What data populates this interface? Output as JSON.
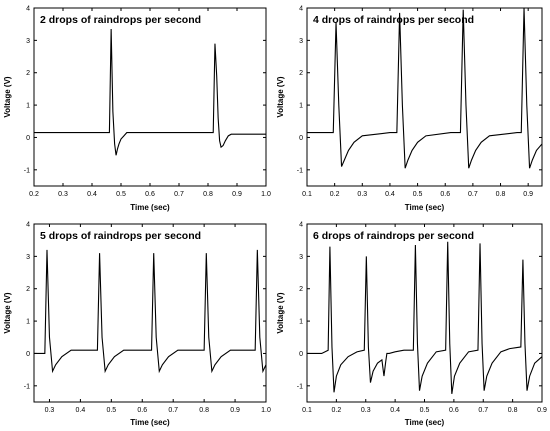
{
  "figure_theme": {
    "line_color": "#000000",
    "background": "#ffffff"
  },
  "chart_data": [
    {
      "type": "line",
      "title": "2 drops of raindrops per second",
      "xlabel": "Time (sec)",
      "ylabel": "Voltage (V)",
      "xlim": [
        0.2,
        1.0
      ],
      "ylim": [
        -1.5,
        4
      ],
      "xticks": [
        "0.2",
        "0.3",
        "0.4",
        "0.5",
        "0.6",
        "0.7",
        "0.8",
        "0.9",
        "1.0"
      ],
      "yticks": [
        "-1",
        "0",
        "1",
        "2",
        "3",
        "4"
      ],
      "grid": false,
      "series": [
        {
          "x": [
            0.2,
            0.3,
            0.4,
            0.455,
            0.46,
            0.466,
            0.472,
            0.478,
            0.483,
            0.488,
            0.493,
            0.5,
            0.51,
            0.52,
            0.6,
            0.7,
            0.8,
            0.818,
            0.824,
            0.83,
            0.835,
            0.84,
            0.845,
            0.852,
            0.86,
            0.87,
            0.88,
            0.9,
            0.95,
            1.0
          ],
          "y": [
            0.15,
            0.15,
            0.15,
            0.15,
            0.15,
            3.35,
            0.8,
            -0.2,
            -0.55,
            -0.35,
            -0.2,
            -0.05,
            0.05,
            0.15,
            0.15,
            0.15,
            0.15,
            0.15,
            2.9,
            1.9,
            0.6,
            -0.1,
            -0.3,
            -0.25,
            -0.1,
            0.05,
            0.1,
            0.1,
            0.1,
            0.1
          ]
        }
      ]
    },
    {
      "type": "line",
      "title": "4 drops of raindrops per second",
      "xlabel": "Time (sec)",
      "ylabel": "Voltage (V)",
      "xlim": [
        0.1,
        0.95
      ],
      "ylim": [
        -1.5,
        4
      ],
      "xticks": [
        "0.1",
        "0.2",
        "0.3",
        "0.4",
        "0.5",
        "0.6",
        "0.7",
        "0.8",
        "0.9"
      ],
      "yticks": [
        "-1",
        "0",
        "1",
        "2",
        "3",
        "4"
      ],
      "grid": false,
      "series": [
        {
          "x": [
            0.1,
            0.195,
            0.205,
            0.215,
            0.225,
            0.235,
            0.25,
            0.27,
            0.3,
            0.4,
            0.425,
            0.435,
            0.445,
            0.455,
            0.465,
            0.48,
            0.5,
            0.53,
            0.62,
            0.655,
            0.665,
            0.675,
            0.685,
            0.695,
            0.71,
            0.73,
            0.76,
            0.86,
            0.875,
            0.885,
            0.895,
            0.905,
            0.915,
            0.93,
            0.95
          ],
          "y": [
            0.15,
            0.15,
            3.55,
            1.0,
            -0.9,
            -0.7,
            -0.4,
            -0.15,
            0.05,
            0.15,
            0.15,
            3.85,
            1.0,
            -0.95,
            -0.7,
            -0.4,
            -0.15,
            0.05,
            0.15,
            0.15,
            3.95,
            1.0,
            -0.95,
            -0.7,
            -0.4,
            -0.15,
            0.05,
            0.15,
            0.15,
            4.0,
            1.0,
            -0.95,
            -0.7,
            -0.4,
            -0.2
          ]
        }
      ]
    },
    {
      "type": "line",
      "title": "5 drops of raindrops per second",
      "xlabel": "Time (sec)",
      "ylabel": "Voltage (V)",
      "xlim": [
        0.25,
        1.0
      ],
      "ylim": [
        -1.5,
        4
      ],
      "xticks": [
        "0.3",
        "0.4",
        "0.5",
        "0.6",
        "0.7",
        "0.8",
        "0.9",
        "1.0"
      ],
      "yticks": [
        "-1",
        "0",
        "1",
        "2",
        "3",
        "4"
      ],
      "grid": false,
      "series": [
        {
          "x": [
            0.25,
            0.27,
            0.285,
            0.292,
            0.3,
            0.31,
            0.32,
            0.34,
            0.37,
            0.44,
            0.455,
            0.462,
            0.47,
            0.48,
            0.49,
            0.51,
            0.54,
            0.615,
            0.63,
            0.637,
            0.645,
            0.655,
            0.665,
            0.685,
            0.715,
            0.785,
            0.8,
            0.807,
            0.815,
            0.825,
            0.835,
            0.855,
            0.885,
            0.95,
            0.965,
            0.972,
            0.98,
            0.99,
            1.0
          ],
          "y": [
            0.0,
            0.0,
            0.0,
            3.2,
            0.5,
            -0.55,
            -0.35,
            -0.1,
            0.1,
            0.1,
            0.1,
            3.1,
            0.5,
            -0.55,
            -0.35,
            -0.1,
            0.1,
            0.1,
            0.1,
            3.1,
            0.5,
            -0.55,
            -0.35,
            -0.1,
            0.1,
            0.1,
            0.1,
            3.1,
            0.5,
            -0.55,
            -0.35,
            -0.1,
            0.1,
            0.1,
            0.1,
            3.2,
            0.5,
            -0.55,
            -0.35
          ]
        }
      ]
    },
    {
      "type": "line",
      "title": "6 drops of raindrops per second",
      "xlabel": "Time (sec)",
      "ylabel": "Voltage (V)",
      "xlim": [
        0.1,
        0.9
      ],
      "ylim": [
        -1.5,
        4
      ],
      "xticks": [
        "0.1",
        "0.2",
        "0.3",
        "0.4",
        "0.5",
        "0.6",
        "0.7",
        "0.8",
        "0.9"
      ],
      "yticks": [
        "-1",
        "0",
        "1",
        "2",
        "3",
        "4"
      ],
      "grid": false,
      "series": [
        {
          "x": [
            0.1,
            0.15,
            0.172,
            0.178,
            0.185,
            0.192,
            0.2,
            0.215,
            0.24,
            0.27,
            0.295,
            0.302,
            0.309,
            0.316,
            0.325,
            0.34,
            0.355,
            0.362,
            0.368,
            0.372,
            0.38,
            0.4,
            0.43,
            0.462,
            0.469,
            0.476,
            0.483,
            0.492,
            0.51,
            0.54,
            0.572,
            0.579,
            0.586,
            0.593,
            0.602,
            0.62,
            0.65,
            0.682,
            0.689,
            0.696,
            0.703,
            0.712,
            0.73,
            0.76,
            0.79,
            0.828,
            0.835,
            0.842,
            0.849,
            0.858,
            0.875,
            0.9
          ],
          "y": [
            0.0,
            0.0,
            0.1,
            3.3,
            0.2,
            -1.2,
            -0.7,
            -0.35,
            -0.1,
            0.05,
            0.1,
            3.0,
            0.2,
            -0.9,
            -0.55,
            -0.3,
            -0.2,
            -0.7,
            -0.25,
            0.0,
            0.0,
            0.05,
            0.1,
            0.1,
            3.35,
            0.3,
            -1.15,
            -0.7,
            -0.3,
            0.05,
            0.1,
            3.45,
            0.3,
            -1.25,
            -0.7,
            -0.3,
            0.05,
            0.1,
            3.4,
            0.3,
            -1.15,
            -0.7,
            -0.3,
            0.05,
            0.15,
            0.2,
            2.9,
            0.3,
            -1.15,
            -0.7,
            -0.3,
            -0.1
          ]
        }
      ]
    }
  ]
}
